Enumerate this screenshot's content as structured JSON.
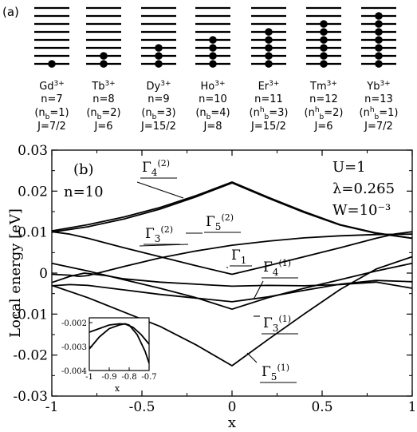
{
  "panel_a": {
    "label": "(a)",
    "ions": [
      {
        "ion": "Gd",
        "charge": "3+",
        "n": "n=7",
        "nb_pre": "(n",
        "nb_sup": "",
        "nb_sub": "b",
        "nb_post": "=1)",
        "J": "J=7/2",
        "filled": 1
      },
      {
        "ion": "Tb",
        "charge": "3+",
        "n": "n=8",
        "nb_pre": "(n",
        "nb_sup": "",
        "nb_sub": "b",
        "nb_post": "=2)",
        "J": "J=6",
        "filled": 2
      },
      {
        "ion": "Dy",
        "charge": "3+",
        "n": "n=9",
        "nb_pre": "(n",
        "nb_sup": "",
        "nb_sub": "b",
        "nb_post": "=3)",
        "J": "J=15/2",
        "filled": 3
      },
      {
        "ion": "Ho",
        "charge": "3+",
        "n": "n=10",
        "nb_pre": "(n",
        "nb_sup": "",
        "nb_sub": "b",
        "nb_post": "=4)",
        "J": "J=8",
        "filled": 4
      },
      {
        "ion": "Er",
        "charge": "3+",
        "n": "n=11",
        "nb_pre": "(n",
        "nb_sup": "h",
        "nb_sub": "b",
        "nb_post": "=3)",
        "J": "J=15/2",
        "filled": 5
      },
      {
        "ion": "Tm",
        "charge": "3+",
        "n": "n=12",
        "nb_pre": "(n",
        "nb_sup": "h",
        "nb_sub": "b",
        "nb_post": "=2)",
        "J": "J=6",
        "filled": 6
      },
      {
        "ion": "Yb",
        "charge": "3+",
        "n": "n=13",
        "nb_pre": "(n",
        "nb_sup": "h",
        "nb_sub": "b",
        "nb_post": "=1)",
        "J": "J=7/2",
        "filled": 7
      }
    ],
    "levels_per_ion": 8
  },
  "chart_data": {
    "type": "line",
    "panel_label": "(b)",
    "n_label": "n=10",
    "params": [
      "U=1",
      "λ=0.265",
      "W=10⁻³"
    ],
    "xlabel": "x",
    "ylabel": "Local energy [eV]",
    "xlim": [
      -1,
      1
    ],
    "ylim": [
      -0.03,
      0.03
    ],
    "xticks": [
      -1,
      -0.5,
      0,
      0.5,
      1
    ],
    "xtick_labels": [
      "-1",
      "-0.5",
      "0",
      "0.5",
      "1"
    ],
    "yticks": [
      -0.03,
      -0.02,
      -0.01,
      0,
      0.01,
      0.02,
      0.03
    ],
    "ytick_labels": [
      "-0.03",
      "-0.02",
      "-0.01",
      "0",
      "0.01",
      "0.02",
      "0.03"
    ],
    "grid": false,
    "series": [
      {
        "name": "Γ4(2)a",
        "points": [
          [
            -1,
            0.0103
          ],
          [
            -0.8,
            0.0118
          ],
          [
            -0.6,
            0.0137
          ],
          [
            -0.4,
            0.016
          ],
          [
            -0.2,
            0.0189
          ],
          [
            0,
            0.0222
          ],
          [
            0.2,
            0.0185
          ],
          [
            0.4,
            0.015
          ],
          [
            0.6,
            0.0118
          ],
          [
            0.8,
            0.0098
          ],
          [
            1,
            0.0085
          ]
        ]
      },
      {
        "name": "Γ4(2)b",
        "points": [
          [
            -1,
            0.01
          ],
          [
            -0.8,
            0.0113
          ],
          [
            -0.6,
            0.0132
          ],
          [
            -0.4,
            0.0156
          ],
          [
            -0.2,
            0.0186
          ],
          [
            0,
            0.022
          ],
          [
            0.2,
            0.0183
          ],
          [
            0.4,
            0.0148
          ],
          [
            0.6,
            0.0117
          ],
          [
            0.8,
            0.0097
          ],
          [
            1,
            0.0085
          ]
        ]
      },
      {
        "name": "Γ3(2)",
        "points": [
          [
            -1,
            0.0101
          ],
          [
            -0.9,
            0.0095
          ],
          [
            -0.8,
            0.0085
          ],
          [
            -0.6,
            0.0062
          ],
          [
            -0.4,
            0.004
          ],
          [
            -0.2,
            0.0018
          ],
          [
            0,
            -0.0003
          ],
          [
            0.2,
            0.0018
          ],
          [
            0.4,
            0.004
          ],
          [
            0.6,
            0.0062
          ],
          [
            0.8,
            0.0085
          ],
          [
            0.9,
            0.0095
          ],
          [
            1,
            0.0101
          ]
        ]
      },
      {
        "name": "Γ5(2)",
        "points": [
          [
            -1,
            -0.0003
          ],
          [
            -0.9,
            -0.0005
          ],
          [
            -0.85,
            -0.0008
          ],
          [
            -0.8,
            -0.0006
          ],
          [
            -0.6,
            0.0016
          ],
          [
            -0.4,
            0.0037
          ],
          [
            -0.2,
            0.0054
          ],
          [
            0,
            0.0068
          ],
          [
            0.2,
            0.0078
          ],
          [
            0.4,
            0.0086
          ],
          [
            0.6,
            0.0091
          ],
          [
            0.8,
            0.0094
          ],
          [
            1,
            0.0095
          ]
        ]
      },
      {
        "name": "Γ1",
        "points": [
          [
            -1,
            0.0024
          ],
          [
            -0.8,
            0.0005
          ],
          [
            -0.6,
            -0.0016
          ],
          [
            -0.4,
            -0.0037
          ],
          [
            -0.2,
            -0.006
          ],
          [
            0,
            -0.0088
          ],
          [
            0.2,
            -0.006
          ],
          [
            0.4,
            -0.0037
          ],
          [
            0.6,
            -0.0016
          ],
          [
            0.8,
            0.0005
          ],
          [
            1,
            0.0024
          ]
        ]
      },
      {
        "name": "Γ4(1)",
        "points": [
          [
            -1,
            -0.0031
          ],
          [
            -0.9,
            -0.0028
          ],
          [
            -0.8,
            -0.003
          ],
          [
            -0.6,
            -0.0041
          ],
          [
            -0.4,
            -0.0052
          ],
          [
            -0.2,
            -0.0061
          ],
          [
            0,
            -0.007
          ],
          [
            0.2,
            -0.0058
          ],
          [
            0.4,
            -0.0042
          ],
          [
            0.6,
            -0.0027
          ],
          [
            0.8,
            -0.0018
          ],
          [
            1,
            -0.0021
          ]
        ]
      },
      {
        "name": "Γ3(1)",
        "points": [
          [
            -1,
            -0.0023
          ],
          [
            -0.9,
            -0.0008
          ],
          [
            -0.82,
            0.0
          ],
          [
            -0.7,
            -0.0006
          ],
          [
            -0.6,
            -0.0014
          ],
          [
            -0.4,
            -0.0022
          ],
          [
            -0.2,
            -0.0027
          ],
          [
            0,
            -0.0032
          ],
          [
            0.2,
            -0.003
          ],
          [
            0.4,
            -0.0031
          ],
          [
            0.6,
            -0.0028
          ],
          [
            0.8,
            -0.0022
          ],
          [
            1,
            -0.0037
          ]
        ]
      },
      {
        "name": "Γ5(1)",
        "points": [
          [
            -1,
            -0.003
          ],
          [
            -0.8,
            -0.006
          ],
          [
            -0.6,
            -0.0095
          ],
          [
            -0.4,
            -0.013
          ],
          [
            -0.2,
            -0.0175
          ],
          [
            0,
            -0.0226
          ],
          [
            0.2,
            -0.0162
          ],
          [
            0.4,
            -0.01
          ],
          [
            0.6,
            -0.004
          ],
          [
            0.8,
            0.001
          ],
          [
            1,
            0.004
          ]
        ]
      }
    ],
    "annotations": [
      {
        "label": "Γ4",
        "sup": "(2)"
      },
      {
        "label": "Γ3",
        "sup": "(2)"
      },
      {
        "label": "Γ5",
        "sup": "(2)"
      },
      {
        "label": "Γ1",
        "sup": ""
      },
      {
        "label": "Γ4",
        "sup": "(1)"
      },
      {
        "label": "Γ3",
        "sup": "(1)"
      },
      {
        "label": "Γ5",
        "sup": "(1)"
      }
    ],
    "inset": {
      "xlim": [
        -1,
        -0.7
      ],
      "ylim": [
        -0.004,
        -0.0018
      ],
      "xticks": [
        -1,
        -0.9,
        -0.8,
        -0.7
      ],
      "xtick_labels": [
        "-1",
        "-0.9",
        "-0.8",
        "-0.7"
      ],
      "yticks": [
        -0.002,
        -0.003,
        -0.004
      ],
      "ytick_labels": [
        "-0.002",
        "-0.003",
        "-0.004"
      ],
      "xlabel": "x",
      "series": [
        {
          "name": "inset-a",
          "points": [
            [
              -1,
              -0.0031
            ],
            [
              -0.95,
              -0.0026
            ],
            [
              -0.9,
              -0.00225
            ],
            [
              -0.85,
              -0.0021
            ],
            [
              -0.82,
              -0.00205
            ],
            [
              -0.8,
              -0.0021
            ],
            [
              -0.76,
              -0.0025
            ],
            [
              -0.72,
              -0.0032
            ],
            [
              -0.7,
              -0.0037
            ]
          ]
        },
        {
          "name": "inset-b",
          "points": [
            [
              -1,
              -0.0024
            ],
            [
              -0.95,
              -0.00225
            ],
            [
              -0.9,
              -0.0021
            ],
            [
              -0.85,
              -0.00205
            ],
            [
              -0.82,
              -0.00206
            ],
            [
              -0.78,
              -0.0022
            ],
            [
              -0.74,
              -0.0025
            ],
            [
              -0.7,
              -0.0029
            ]
          ]
        }
      ]
    }
  }
}
